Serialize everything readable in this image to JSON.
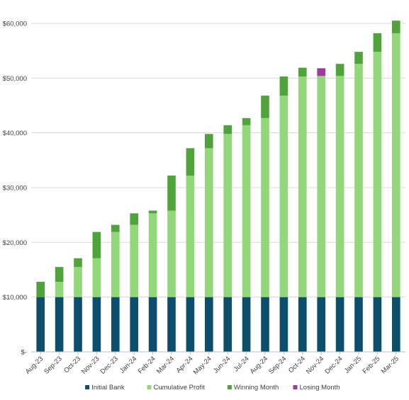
{
  "chart_data": {
    "type": "bar",
    "stacked": true,
    "categories": [
      "Aug-23",
      "Sep-23",
      "Oct-23",
      "Nov-23",
      "Dec-23",
      "Jan-24",
      "Feb-24",
      "Mar-24",
      "Apr-24",
      "May-24",
      "Jun-24",
      "Jul-24",
      "Aug-24",
      "Sep-24",
      "Oct-24",
      "Nov-24",
      "Dec-24",
      "Jan-25",
      "Feb-25",
      "Mar-25"
    ],
    "series": [
      {
        "name": "Initial Bank",
        "color": "#0b4f6c",
        "values": [
          10000,
          10000,
          10000,
          10000,
          10000,
          10000,
          10000,
          10000,
          10000,
          10000,
          10000,
          10000,
          10000,
          10000,
          10000,
          10000,
          10000,
          10000,
          10000,
          10000
        ]
      },
      {
        "name": "Cumulative Profit",
        "color": "#92d77a",
        "values": [
          0,
          2800,
          5500,
          7100,
          11900,
          13200,
          15300,
          15800,
          22200,
          27200,
          29800,
          31400,
          32700,
          36800,
          40300,
          40400,
          40400,
          42600,
          44800,
          48200
        ]
      },
      {
        "name": "Winning Month",
        "color": "#4ea33b",
        "values": [
          2800,
          2700,
          1600,
          4800,
          1300,
          2100,
          500,
          6400,
          5000,
          2600,
          1600,
          1300,
          4100,
          3500,
          1600,
          0,
          2200,
          2200,
          3400,
          2300
        ]
      },
      {
        "name": "Losing Month",
        "color": "#9e3a9c",
        "values": [
          0,
          0,
          0,
          0,
          0,
          0,
          0,
          0,
          0,
          0,
          0,
          0,
          0,
          0,
          0,
          1400,
          0,
          0,
          0,
          0
        ]
      }
    ],
    "yticks": [
      {
        "value": 0,
        "label": "$-"
      },
      {
        "value": 10000,
        "label": "$10,000"
      },
      {
        "value": 20000,
        "label": "$20,000"
      },
      {
        "value": 30000,
        "label": "$30,000"
      },
      {
        "value": 40000,
        "label": "$40,000"
      },
      {
        "value": 50000,
        "label": "$50,000"
      },
      {
        "value": 60000,
        "label": "$60,000"
      }
    ],
    "ylim": [
      0,
      60000
    ],
    "grid": true,
    "legend_position": "bottom"
  }
}
